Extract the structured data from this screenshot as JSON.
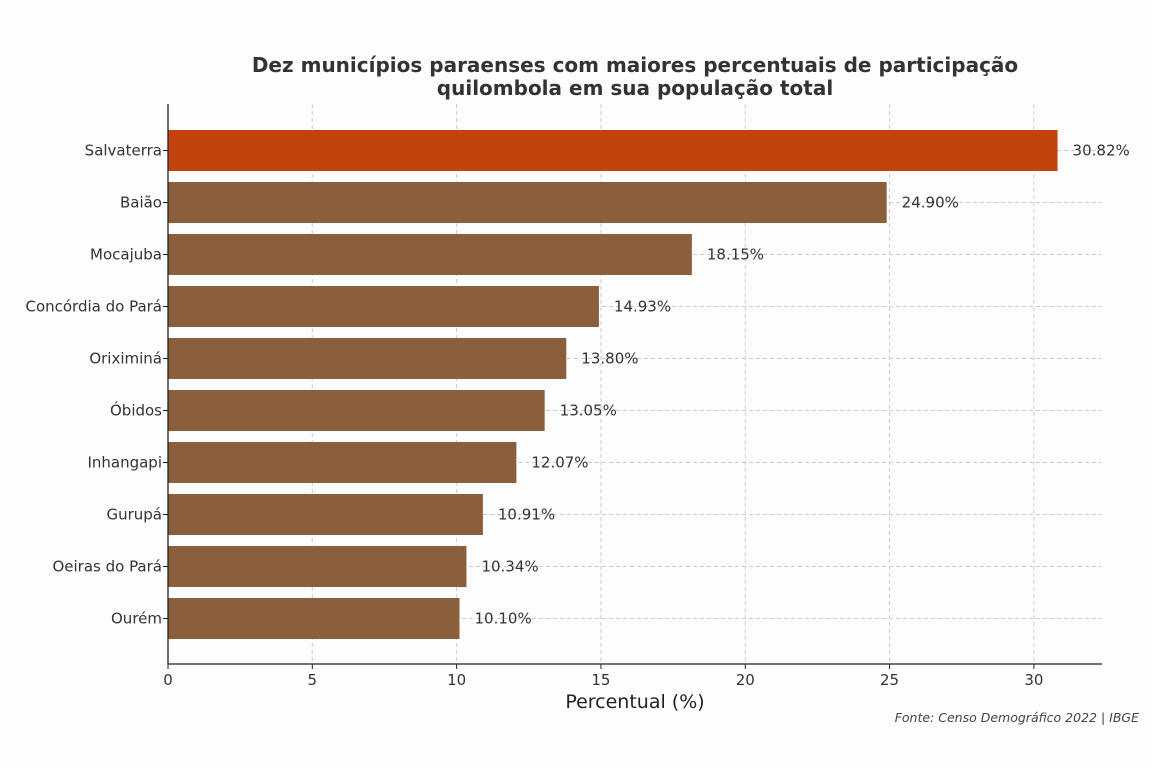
{
  "chart_data": {
    "type": "bar",
    "orientation": "horizontal",
    "title_lines": [
      "Dez municípios paraenses com maiores percentuais de participação",
      "quilombola em sua população total"
    ],
    "xlabel": "Percentual (%)",
    "ylabel": "",
    "xlim": [
      0,
      32.36
    ],
    "xticks": [
      0,
      5,
      10,
      15,
      20,
      25,
      30
    ],
    "grid": true,
    "categories": [
      "Salvaterra",
      "Baião",
      "Mocajuba",
      "Concórdia do Pará",
      "Oriximiná",
      "Óbidos",
      "Inhangapi",
      "Gurupá",
      "Oeiras do Pará",
      "Ourém"
    ],
    "values": [
      30.82,
      24.9,
      18.15,
      14.93,
      13.8,
      13.05,
      12.07,
      10.91,
      10.34,
      10.1
    ],
    "value_labels": [
      "30.82%",
      "24.90%",
      "18.15%",
      "14.93%",
      "13.80%",
      "13.05%",
      "12.07%",
      "10.91%",
      "10.34%",
      "10.10%"
    ],
    "highlight_index": 0,
    "colors": {
      "highlight": "#c1440e",
      "bar": "#8b5e3c"
    },
    "source": "Fonte: Censo Demográfico 2022 | IBGE"
  }
}
